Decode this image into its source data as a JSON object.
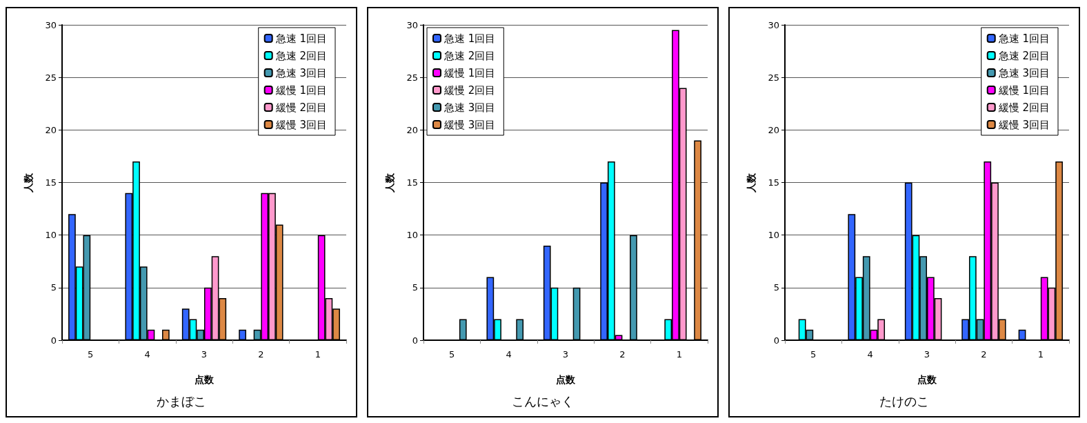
{
  "chart_data": [
    {
      "type": "bar",
      "title": "かまぼこ",
      "xlabel": "点数",
      "ylabel": "人数",
      "categories": [
        "5",
        "4",
        "3",
        "2",
        "1"
      ],
      "ylim": [
        0,
        30
      ],
      "yticks": [
        0,
        5,
        10,
        15,
        20,
        25,
        30
      ],
      "grid": "y",
      "legend": "top right",
      "series": [
        {
          "name": "急速 1回目",
          "color": "#3366ff",
          "values": [
            12,
            14,
            3,
            1,
            0
          ]
        },
        {
          "name": "急速 2回目",
          "color": "#00ffff",
          "values": [
            7,
            17,
            2,
            0,
            0
          ]
        },
        {
          "name": "急速 3回目",
          "color": "#4499b0",
          "values": [
            10,
            7,
            1,
            1,
            0
          ]
        },
        {
          "name": "緩慢 1回目",
          "color": "#ff00ff",
          "values": [
            0,
            1,
            5,
            14,
            10
          ]
        },
        {
          "name": "緩慢 2回目",
          "color": "#ff99cc",
          "values": [
            0,
            0,
            8,
            14,
            4
          ]
        },
        {
          "name": "緩慢 3回目",
          "color": "#dd8844",
          "values": [
            0,
            1,
            4,
            11,
            3
          ]
        }
      ]
    },
    {
      "type": "bar",
      "title": "こんにゃく",
      "xlabel": "点数",
      "ylabel": "人数",
      "categories": [
        "5",
        "4",
        "3",
        "2",
        "1"
      ],
      "ylim": [
        0,
        30
      ],
      "yticks": [
        0,
        5,
        10,
        15,
        20,
        25,
        30
      ],
      "grid": "y",
      "legend": "top left",
      "series": [
        {
          "name": "急速 1回目",
          "color": "#3366ff",
          "values": [
            0,
            6,
            9,
            15,
            0
          ]
        },
        {
          "name": "急速 2回目",
          "color": "#00ffff",
          "values": [
            0,
            2,
            5,
            17,
            2
          ]
        },
        {
          "name": "緩慢 1回目",
          "color": "#ff00ff",
          "values": [
            0,
            0,
            0,
            0.5,
            29.5
          ]
        },
        {
          "name": "緩慢 2回目",
          "color": "#ff99cc",
          "values": [
            0,
            0,
            0,
            0,
            24
          ]
        },
        {
          "name": "急速 3回目",
          "color": "#4499b0",
          "values": [
            2,
            2,
            5,
            10,
            0
          ]
        },
        {
          "name": "緩慢 3回目",
          "color": "#dd8844",
          "values": [
            0,
            0,
            0,
            0,
            19
          ]
        }
      ]
    },
    {
      "type": "bar",
      "title": "たけのこ",
      "xlabel": "点数",
      "ylabel": "人数",
      "categories": [
        "5",
        "4",
        "3",
        "2",
        "1"
      ],
      "ylim": [
        0,
        30
      ],
      "yticks": [
        0,
        5,
        10,
        15,
        20,
        25,
        30
      ],
      "grid": "y",
      "legend": "top right",
      "series": [
        {
          "name": "急速 1回目",
          "color": "#3366ff",
          "values": [
            0,
            12,
            15,
            2,
            1
          ]
        },
        {
          "name": "急速 2回目",
          "color": "#00ffff",
          "values": [
            2,
            6,
            10,
            8,
            0
          ]
        },
        {
          "name": "急速 3回目",
          "color": "#4499b0",
          "values": [
            1,
            8,
            8,
            2,
            0
          ]
        },
        {
          "name": "緩慢 1回目",
          "color": "#ff00ff",
          "values": [
            0,
            1,
            6,
            17,
            6
          ]
        },
        {
          "name": "緩慢 2回目",
          "color": "#ff99cc",
          "values": [
            0,
            2,
            4,
            15,
            5
          ]
        },
        {
          "name": "緩慢 3回目",
          "color": "#dd8844",
          "values": [
            0,
            0,
            0,
            2,
            17
          ]
        }
      ]
    }
  ]
}
